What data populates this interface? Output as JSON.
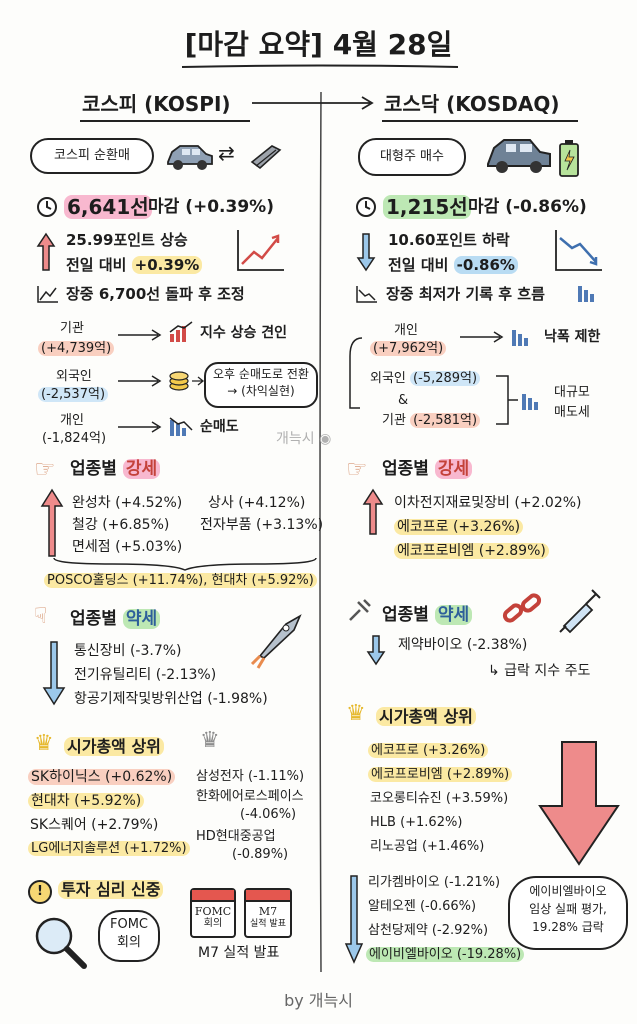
{
  "title": "[마감 요약] 4월 28일",
  "kospi": {
    "header": "코스피 (KOSPI)",
    "bubble": "코스피 순환매",
    "close_value": "6,641선",
    "close_text": "마감 (+0.39%)",
    "change_line1": "25.99포인트 상승",
    "change_line2_prefix": "전일 대비",
    "change_line2_value": "+0.39%",
    "intraday": "장중 6,700선 돌파 후 조정",
    "investors": [
      {
        "name": "기관",
        "amount": "(+4,739억)",
        "result": "지수 상승 견인"
      },
      {
        "name": "외국인",
        "amount": "(-2,537억)",
        "result_line1": "오후 순매도로 전환",
        "result_line2": "→ (차익실현)"
      },
      {
        "name": "개인",
        "amount": "(-1,824억)",
        "result": "순매도"
      }
    ],
    "strong_title_prefix": "업종별",
    "strong_title_word": "강세",
    "strong_items": [
      "완성차 (+4.52%)",
      "상사 (+4.12%)",
      "철강 (+6.85%)",
      "전자부품 (+3.13%)",
      "면세점 (+5.03%)"
    ],
    "strong_stocks": "POSCO홀딩스 (+11.74%), 현대차 (+5.92%)",
    "weak_title_prefix": "업종별",
    "weak_title_word": "약세",
    "weak_items": [
      "통신장비 (-3.7%)",
      "전기유틸리티 (-2.13%)",
      "항공기제작및방위산업 (-1.98%)"
    ],
    "top_title": "시가총액 상위",
    "top_left": [
      "SK하이닉스 (+0.62%)",
      "현대차 (+5.92%)",
      "SK스퀘어 (+2.79%)",
      "LG에너지솔루션 (+1.72%)"
    ],
    "top_right": [
      "삼성전자 (-1.11%)",
      "한화에어로스페이스",
      "(-4.06%)",
      "HD현대중공업",
      "(-0.89%)"
    ],
    "sentiment_title": "투자 심리 신중",
    "fomc_bubble_line1": "FOMC",
    "fomc_bubble_line2": "회의",
    "cal1_line1": "FOMC",
    "cal1_line2": "회의",
    "cal2_line1": "M7",
    "cal2_line2": "실적 발표",
    "m7_text": "M7 실적 발표"
  },
  "kosdaq": {
    "header": "코스닥 (KOSDAQ)",
    "bubble": "대형주 매수",
    "close_value": "1,215선",
    "close_text": "마감 (-0.86%)",
    "change_line1": "10.60포인트 하락",
    "change_line2_prefix": "전일 대비",
    "change_line2_value": "-0.86%",
    "intraday": "장중 최저가 기록 후 흐름",
    "investors": [
      {
        "name": "개인",
        "amount": "(+7,962억)",
        "result": "낙폭 제한"
      },
      {
        "name": "외국인",
        "amount": "(-5,289억)"
      },
      {
        "name": "&"
      },
      {
        "name": "기관",
        "amount": "(-2,581억)"
      }
    ],
    "sell_result_line1": "대규모",
    "sell_result_line2": "매도세",
    "strong_title_prefix": "업종별",
    "strong_title_word": "강세",
    "strong_items": [
      "이차전지재료및장비 (+2.02%)",
      "에코프로 (+3.26%)",
      "에코프로비엠 (+2.89%)"
    ],
    "weak_title_prefix": "업종별",
    "weak_title_word": "약세",
    "weak_items": [
      "제약바이오 (-2.38%)"
    ],
    "weak_note": "↳ 급락 지수 주도",
    "top_title": "시가총액 상위",
    "top_up": [
      "에코프로 (+3.26%)",
      "에코프로비엠 (+2.89%)",
      "코오롱티슈진 (+3.59%)",
      "HLB (+1.62%)",
      "리노공업 (+1.46%)"
    ],
    "top_down": [
      "리가켐바이오 (-1.21%)",
      "알테오젠 (-0.66%)",
      "삼천당제약 (-2.92%)",
      "에이비엘바이오 (-19.28%)"
    ],
    "note_line1": "에이비엘바이오",
    "note_line2": "임상 실패 평가,",
    "note_line3": "19.28% 급락"
  },
  "watermark": "개늑시",
  "byline": "by 개늑시",
  "colors": {
    "pink": "#f8b8cf",
    "yellow": "#fbe9a3",
    "green": "#bde8b4",
    "blue": "#b9dcf3",
    "red_arrow": "#ee8b8b",
    "blue_arrow": "#9cc8ea"
  }
}
